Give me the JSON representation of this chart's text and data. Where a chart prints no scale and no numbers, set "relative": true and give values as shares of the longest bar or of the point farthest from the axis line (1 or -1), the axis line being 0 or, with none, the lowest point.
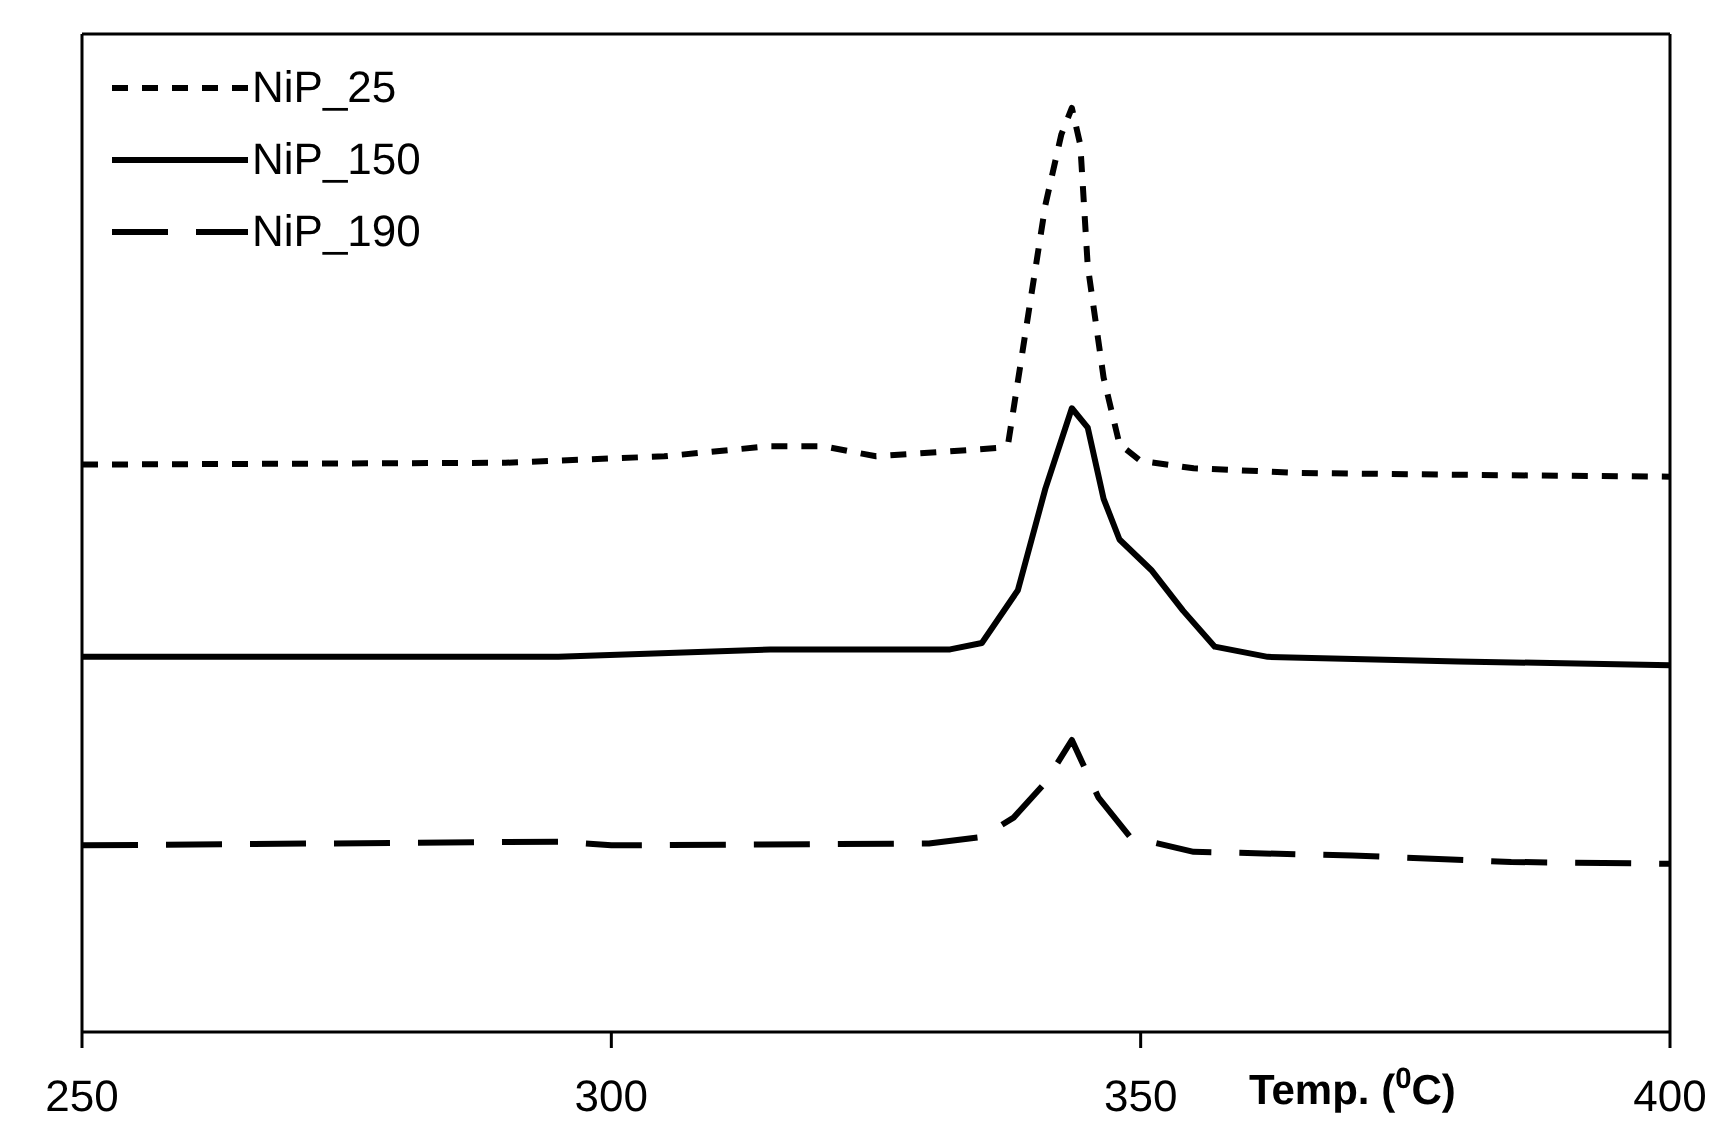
{
  "chart_data": {
    "type": "line",
    "xlabel": "Temp. ($^{0}$C)",
    "relative": true,
    "xlim": [
      250,
      400
    ],
    "xticks": [
      250,
      300,
      350,
      400
    ],
    "legend": "top left",
    "marker": "none",
    "grid": false,
    "series": [
      {
        "name": "NiP_25",
        "color": "#000000",
        "line_style": "dotted",
        "x": [
          250,
          290,
          305,
          315,
          320,
          325,
          336.5,
          337.5,
          339.5,
          341,
          342.5,
          343.5,
          344.3,
          345,
          346.5,
          348,
          350,
          355,
          365,
          380,
          400
        ],
        "values": [
          0.614,
          0.616,
          0.623,
          0.634,
          0.634,
          0.623,
          0.632,
          0.638,
          0.785,
          0.895,
          0.971,
          1,
          0.96,
          0.829,
          0.708,
          0.636,
          0.618,
          0.61,
          0.605,
          0.603,
          0.601
        ]
      },
      {
        "name": "NiP_150",
        "color": "#000000",
        "line_style": "solid",
        "x": [
          250,
          295,
          315,
          332,
          335,
          338.4,
          341,
          343.5,
          345,
          346.5,
          348,
          351,
          354,
          357,
          362,
          380,
          400
        ],
        "values": [
          0.406,
          0.406,
          0.414,
          0.414,
          0.421,
          0.478,
          0.588,
          0.675,
          0.654,
          0.577,
          0.533,
          0.5,
          0.456,
          0.417,
          0.406,
          0.401,
          0.397
        ]
      },
      {
        "name": "NiP_190",
        "color": "#000000",
        "line_style": "dashed",
        "x": [
          250,
          295,
          300,
          330,
          335,
          338,
          341,
          343.5,
          346,
          349,
          355,
          370,
          385,
          400
        ],
        "values": [
          0.202,
          0.206,
          0.202,
          0.204,
          0.211,
          0.232,
          0.27,
          0.316,
          0.254,
          0.211,
          0.195,
          0.191,
          0.184,
          0.182
        ]
      }
    ]
  }
}
